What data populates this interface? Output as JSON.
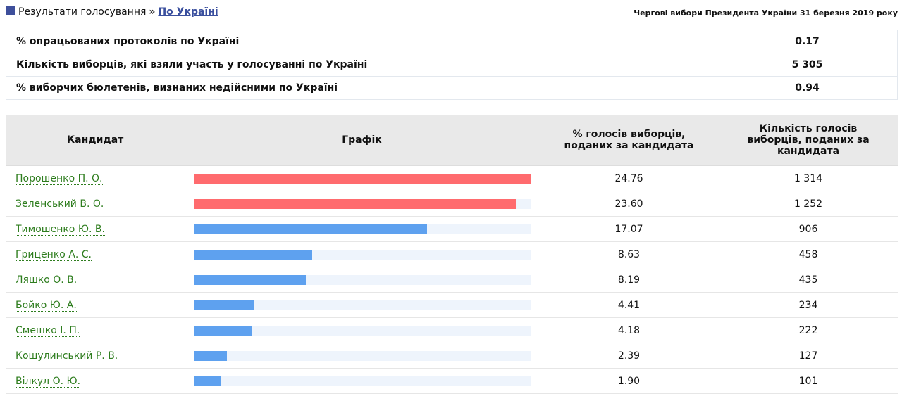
{
  "header": {
    "breadcrumb": "Результати голосування",
    "separator": "»",
    "link": "По Україні",
    "election": "Чергові вибори Президента України 31 березня 2019 року"
  },
  "summary": [
    [
      "% опрацьованих протоколів по Україні",
      "0.17"
    ],
    [
      "Кількість виборців, які взяли участь у голосуванні по Україні",
      "5 305"
    ],
    [
      "% виборчих бюлетенів, визнаних недійсними по Україні",
      "0.94"
    ]
  ],
  "table": {
    "columns": [
      "Кандидат",
      "Графік",
      "% голосів виборців, поданих за кандидата",
      "Кількість голосів виборців, поданих за кандидата"
    ],
    "rows": [
      {
        "name": "Порошенко П. О.",
        "pct": "24.76",
        "votes": "1 314",
        "color": "#ff6b6e"
      },
      {
        "name": "Зеленський В. О.",
        "pct": "23.60",
        "votes": "1 252",
        "color": "#ff6b6e"
      },
      {
        "name": "Тимошенко Ю. В.",
        "pct": "17.07",
        "votes": "906",
        "color": "#5ea1ef"
      },
      {
        "name": "Гриценко А. С.",
        "pct": "8.63",
        "votes": "458",
        "color": "#5ea1ef"
      },
      {
        "name": "Ляшко О. В.",
        "pct": "8.19",
        "votes": "435",
        "color": "#5ea1ef"
      },
      {
        "name": "Бойко Ю. А.",
        "pct": "4.41",
        "votes": "234",
        "color": "#5ea1ef"
      },
      {
        "name": "Смешко І. П.",
        "pct": "4.18",
        "votes": "222",
        "color": "#5ea1ef"
      },
      {
        "name": "Кошулинський Р. В.",
        "pct": "2.39",
        "votes": "127",
        "color": "#5ea1ef"
      },
      {
        "name": "Вілкул О. Ю.",
        "pct": "1.90",
        "votes": "101",
        "color": "#5ea1ef"
      }
    ]
  }
}
